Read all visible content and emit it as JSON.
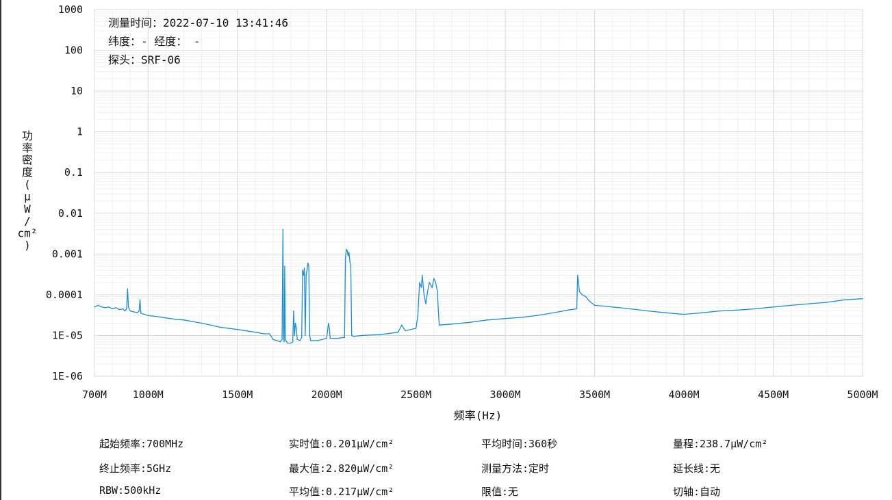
{
  "chart_data": {
    "type": "line",
    "xlabel": "频率(Hz)",
    "ylabel": "功率密度(μW/cm²)",
    "ylabel_chars": [
      "功",
      "率",
      "密",
      "度",
      "(",
      "μ",
      "W",
      "/",
      "cm²",
      ")"
    ],
    "x_ticks": [
      {
        "value": 700,
        "label": "700M"
      },
      {
        "value": 1000,
        "label": "1000M"
      },
      {
        "value": 1500,
        "label": "1500M"
      },
      {
        "value": 2000,
        "label": "2000M"
      },
      {
        "value": 2500,
        "label": "2500M"
      },
      {
        "value": 3000,
        "label": "3000M"
      },
      {
        "value": 3500,
        "label": "3500M"
      },
      {
        "value": 4000,
        "label": "4000M"
      },
      {
        "value": 4500,
        "label": "4500M"
      },
      {
        "value": 5000,
        "label": "5000M"
      }
    ],
    "y_ticks": [
      {
        "value": 1000,
        "label": "1000"
      },
      {
        "value": 100,
        "label": "100"
      },
      {
        "value": 10,
        "label": "10"
      },
      {
        "value": 1,
        "label": "1"
      },
      {
        "value": 0.1,
        "label": "0.1"
      },
      {
        "value": 0.01,
        "label": "0.01"
      },
      {
        "value": 0.001,
        "label": "0.001"
      },
      {
        "value": 0.0001,
        "label": "0.0001"
      },
      {
        "value": 1e-05,
        "label": "1E-05"
      },
      {
        "value": 1e-06,
        "label": "1E-06"
      }
    ],
    "xlim": [
      700,
      5000
    ],
    "ylim": [
      1e-06,
      1000
    ],
    "y_scale": "log",
    "grid": true,
    "line_color": "#1a8fd6",
    "series": [
      {
        "points": [
          [
            700,
            5e-05
          ],
          [
            720,
            5.5e-05
          ],
          [
            740,
            5e-05
          ],
          [
            760,
            4.8e-05
          ],
          [
            780,
            5e-05
          ],
          [
            800,
            4.5e-05
          ],
          [
            820,
            4.8e-05
          ],
          [
            840,
            4.3e-05
          ],
          [
            860,
            4.5e-05
          ],
          [
            870,
            4e-05
          ],
          [
            880,
            4.5e-05
          ],
          [
            885,
            0.00014
          ],
          [
            890,
            5e-05
          ],
          [
            900,
            4e-05
          ],
          [
            920,
            3.8e-05
          ],
          [
            940,
            3.6e-05
          ],
          [
            950,
            4e-05
          ],
          [
            955,
            7.5e-05
          ],
          [
            960,
            3.5e-05
          ],
          [
            980,
            3.3e-05
          ],
          [
            1000,
            3.1e-05
          ],
          [
            1050,
            2.9e-05
          ],
          [
            1100,
            2.7e-05
          ],
          [
            1150,
            2.5e-05
          ],
          [
            1200,
            2.4e-05
          ],
          [
            1250,
            2.2e-05
          ],
          [
            1300,
            2e-05
          ],
          [
            1350,
            1.8e-05
          ],
          [
            1400,
            1.6e-05
          ],
          [
            1450,
            1.5e-05
          ],
          [
            1500,
            1.4e-05
          ],
          [
            1550,
            1.3e-05
          ],
          [
            1600,
            1.2e-05
          ],
          [
            1650,
            1.1e-05
          ],
          [
            1680,
            1.1e-05
          ],
          [
            1700,
            8e-06
          ],
          [
            1720,
            7.5e-06
          ],
          [
            1740,
            7e-06
          ],
          [
            1750,
            8e-06
          ],
          [
            1755,
            0.004
          ],
          [
            1758,
            1e-05
          ],
          [
            1762,
            7e-06
          ],
          [
            1765,
            0.0005
          ],
          [
            1768,
            8e-06
          ],
          [
            1780,
            6.5e-06
          ],
          [
            1800,
            6.5e-06
          ],
          [
            1810,
            7e-06
          ],
          [
            1815,
            4e-05
          ],
          [
            1820,
            1e-05
          ],
          [
            1825,
            2e-05
          ],
          [
            1830,
            1.5e-05
          ],
          [
            1835,
            8e-06
          ],
          [
            1850,
            7.5e-06
          ],
          [
            1860,
            9e-06
          ],
          [
            1865,
            0.0004
          ],
          [
            1870,
            0.0003
          ],
          [
            1875,
            0.00045
          ],
          [
            1880,
            1e-05
          ],
          [
            1885,
            0.0003
          ],
          [
            1890,
            0.0004
          ],
          [
            1895,
            0.0006
          ],
          [
            1900,
            0.0005
          ],
          [
            1905,
            1e-05
          ],
          [
            1910,
            7.5e-06
          ],
          [
            1950,
            7.5e-06
          ],
          [
            2000,
            8.5e-06
          ],
          [
            2010,
            2e-05
          ],
          [
            2015,
            1.5e-05
          ],
          [
            2020,
            8.5e-06
          ],
          [
            2060,
            8.5e-06
          ],
          [
            2100,
            9e-06
          ],
          [
            2105,
            0.0008
          ],
          [
            2110,
            0.0013
          ],
          [
            2115,
            0.0012
          ],
          [
            2120,
            0.0009
          ],
          [
            2125,
            0.0011
          ],
          [
            2130,
            0.00065
          ],
          [
            2135,
            0.0005
          ],
          [
            2140,
            1e-05
          ],
          [
            2150,
            9.5e-06
          ],
          [
            2200,
            1e-05
          ],
          [
            2300,
            1.05e-05
          ],
          [
            2400,
            1.2e-05
          ],
          [
            2420,
            1.8e-05
          ],
          [
            2440,
            1.3e-05
          ],
          [
            2470,
            1.4e-05
          ],
          [
            2500,
            1.5e-05
          ],
          [
            2510,
            3e-05
          ],
          [
            2520,
            0.0002
          ],
          [
            2530,
            0.00015
          ],
          [
            2535,
            0.0003
          ],
          [
            2545,
            0.0001
          ],
          [
            2555,
            6e-05
          ],
          [
            2565,
            0.00012
          ],
          [
            2575,
            0.0002
          ],
          [
            2590,
            0.00015
          ],
          [
            2600,
            0.00025
          ],
          [
            2610,
            0.0002
          ],
          [
            2620,
            0.00012
          ],
          [
            2625,
            4e-05
          ],
          [
            2630,
            1.8e-05
          ],
          [
            2700,
            1.9e-05
          ],
          [
            2800,
            2.1e-05
          ],
          [
            2900,
            2.4e-05
          ],
          [
            3000,
            2.6e-05
          ],
          [
            3100,
            2.8e-05
          ],
          [
            3200,
            3.2e-05
          ],
          [
            3300,
            3.8e-05
          ],
          [
            3350,
            4.2e-05
          ],
          [
            3400,
            4.5e-05
          ],
          [
            3405,
            0.0003
          ],
          [
            3410,
            0.0002
          ],
          [
            3415,
            0.00012
          ],
          [
            3430,
            0.0001
          ],
          [
            3450,
            9e-05
          ],
          [
            3470,
            7e-05
          ],
          [
            3500,
            5.5e-05
          ],
          [
            3600,
            5e-05
          ],
          [
            3700,
            4.5e-05
          ],
          [
            3800,
            4e-05
          ],
          [
            3900,
            3.6e-05
          ],
          [
            4000,
            3.3e-05
          ],
          [
            4100,
            3.6e-05
          ],
          [
            4200,
            4e-05
          ],
          [
            4300,
            4.2e-05
          ],
          [
            4400,
            4.5e-05
          ],
          [
            4500,
            5e-05
          ],
          [
            4600,
            5.5e-05
          ],
          [
            4700,
            6e-05
          ],
          [
            4800,
            6.5e-05
          ],
          [
            4900,
            7.5e-05
          ],
          [
            5000,
            8e-05
          ]
        ]
      }
    ],
    "annotations": {
      "time": "测量时间：2022-07-10 13:41:46",
      "coords": "纬度：- 经度： -",
      "probe": "探头：SRF-06"
    }
  },
  "stats": {
    "start_freq": "起始频率:700MHz",
    "stop_freq": "终止频率:5GHz",
    "rbw": "RBW:500kHz",
    "realtime": "实时值:0.201μW/cm²",
    "max": "最大值:2.820μW/cm²",
    "average": "平均值:0.217μW/cm²",
    "avg_time": "平均时间:360秒",
    "method": "测量方法:定时",
    "limit": "限值:无",
    "range": "量程:238.7μW/cm²",
    "extension": "延长线:无",
    "axis_cut": "切轴:自动"
  }
}
